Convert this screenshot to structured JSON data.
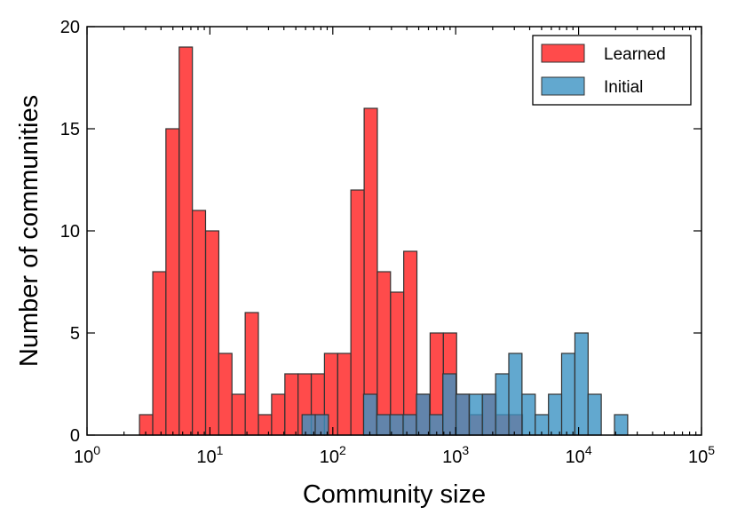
{
  "chart_data": {
    "type": "bar",
    "title": "",
    "xlabel": "Community size",
    "ylabel": "Number of communities",
    "xscale": "log10",
    "xlim": [
      1,
      100000
    ],
    "ylim": [
      0,
      20
    ],
    "bin_log_width": 0.1075,
    "x_ticks": [
      {
        "base": "10",
        "exp": "0",
        "value": 1
      },
      {
        "base": "10",
        "exp": "1",
        "value": 10
      },
      {
        "base": "10",
        "exp": "2",
        "value": 100
      },
      {
        "base": "10",
        "exp": "3",
        "value": 1000
      },
      {
        "base": "10",
        "exp": "4",
        "value": 10000
      },
      {
        "base": "10",
        "exp": "5",
        "value": 100000
      }
    ],
    "y_ticks": [
      {
        "label": "0",
        "value": 0
      },
      {
        "label": "5",
        "value": 5
      },
      {
        "label": "10",
        "value": 10
      },
      {
        "label": "15",
        "value": 15
      },
      {
        "label": "20",
        "value": 20
      }
    ],
    "legend_position": "top-right",
    "series": [
      {
        "name": "Learned",
        "color": "#ff2b2b",
        "opacity": 0.85,
        "bins": [
          {
            "log_start": 0.427,
            "count": 1
          },
          {
            "log_start": 0.535,
            "count": 8
          },
          {
            "log_start": 0.642,
            "count": 15
          },
          {
            "log_start": 0.75,
            "count": 19
          },
          {
            "log_start": 0.857,
            "count": 11
          },
          {
            "log_start": 0.965,
            "count": 10
          },
          {
            "log_start": 1.072,
            "count": 4
          },
          {
            "log_start": 1.18,
            "count": 2
          },
          {
            "log_start": 1.287,
            "count": 6
          },
          {
            "log_start": 1.395,
            "count": 1
          },
          {
            "log_start": 1.502,
            "count": 2
          },
          {
            "log_start": 1.61,
            "count": 3
          },
          {
            "log_start": 1.717,
            "count": 3
          },
          {
            "log_start": 1.825,
            "count": 3
          },
          {
            "log_start": 1.932,
            "count": 4
          },
          {
            "log_start": 2.04,
            "count": 4
          },
          {
            "log_start": 2.147,
            "count": 12
          },
          {
            "log_start": 2.255,
            "count": 16
          },
          {
            "log_start": 2.362,
            "count": 8
          },
          {
            "log_start": 2.47,
            "count": 7
          },
          {
            "log_start": 2.577,
            "count": 9
          },
          {
            "log_start": 2.685,
            "count": 2
          },
          {
            "log_start": 2.792,
            "count": 5
          },
          {
            "log_start": 2.9,
            "count": 5
          },
          {
            "log_start": 3.007,
            "count": 2
          },
          {
            "log_start": 3.115,
            "count": 1
          },
          {
            "log_start": 3.222,
            "count": 2
          },
          {
            "log_start": 3.33,
            "count": 1
          },
          {
            "log_start": 3.437,
            "count": 1
          }
        ]
      },
      {
        "name": "Initial",
        "color": "#3b92c3",
        "opacity": 0.8,
        "bins": [
          {
            "log_start": 1.75,
            "count": 1
          },
          {
            "log_start": 1.857,
            "count": 1
          },
          {
            "log_start": 2.25,
            "count": 2
          },
          {
            "log_start": 2.357,
            "count": 1
          },
          {
            "log_start": 2.465,
            "count": 1
          },
          {
            "log_start": 2.572,
            "count": 1
          },
          {
            "log_start": 2.68,
            "count": 2
          },
          {
            "log_start": 2.787,
            "count": 1
          },
          {
            "log_start": 2.895,
            "count": 3
          },
          {
            "log_start": 3.002,
            "count": 2
          },
          {
            "log_start": 3.11,
            "count": 2
          },
          {
            "log_start": 3.217,
            "count": 2
          },
          {
            "log_start": 3.325,
            "count": 3
          },
          {
            "log_start": 3.432,
            "count": 4
          },
          {
            "log_start": 3.54,
            "count": 2
          },
          {
            "log_start": 3.647,
            "count": 1
          },
          {
            "log_start": 3.755,
            "count": 2
          },
          {
            "log_start": 3.862,
            "count": 4
          },
          {
            "log_start": 3.97,
            "count": 5
          },
          {
            "log_start": 4.077,
            "count": 2
          },
          {
            "log_start": 4.292,
            "count": 1
          }
        ]
      }
    ]
  }
}
